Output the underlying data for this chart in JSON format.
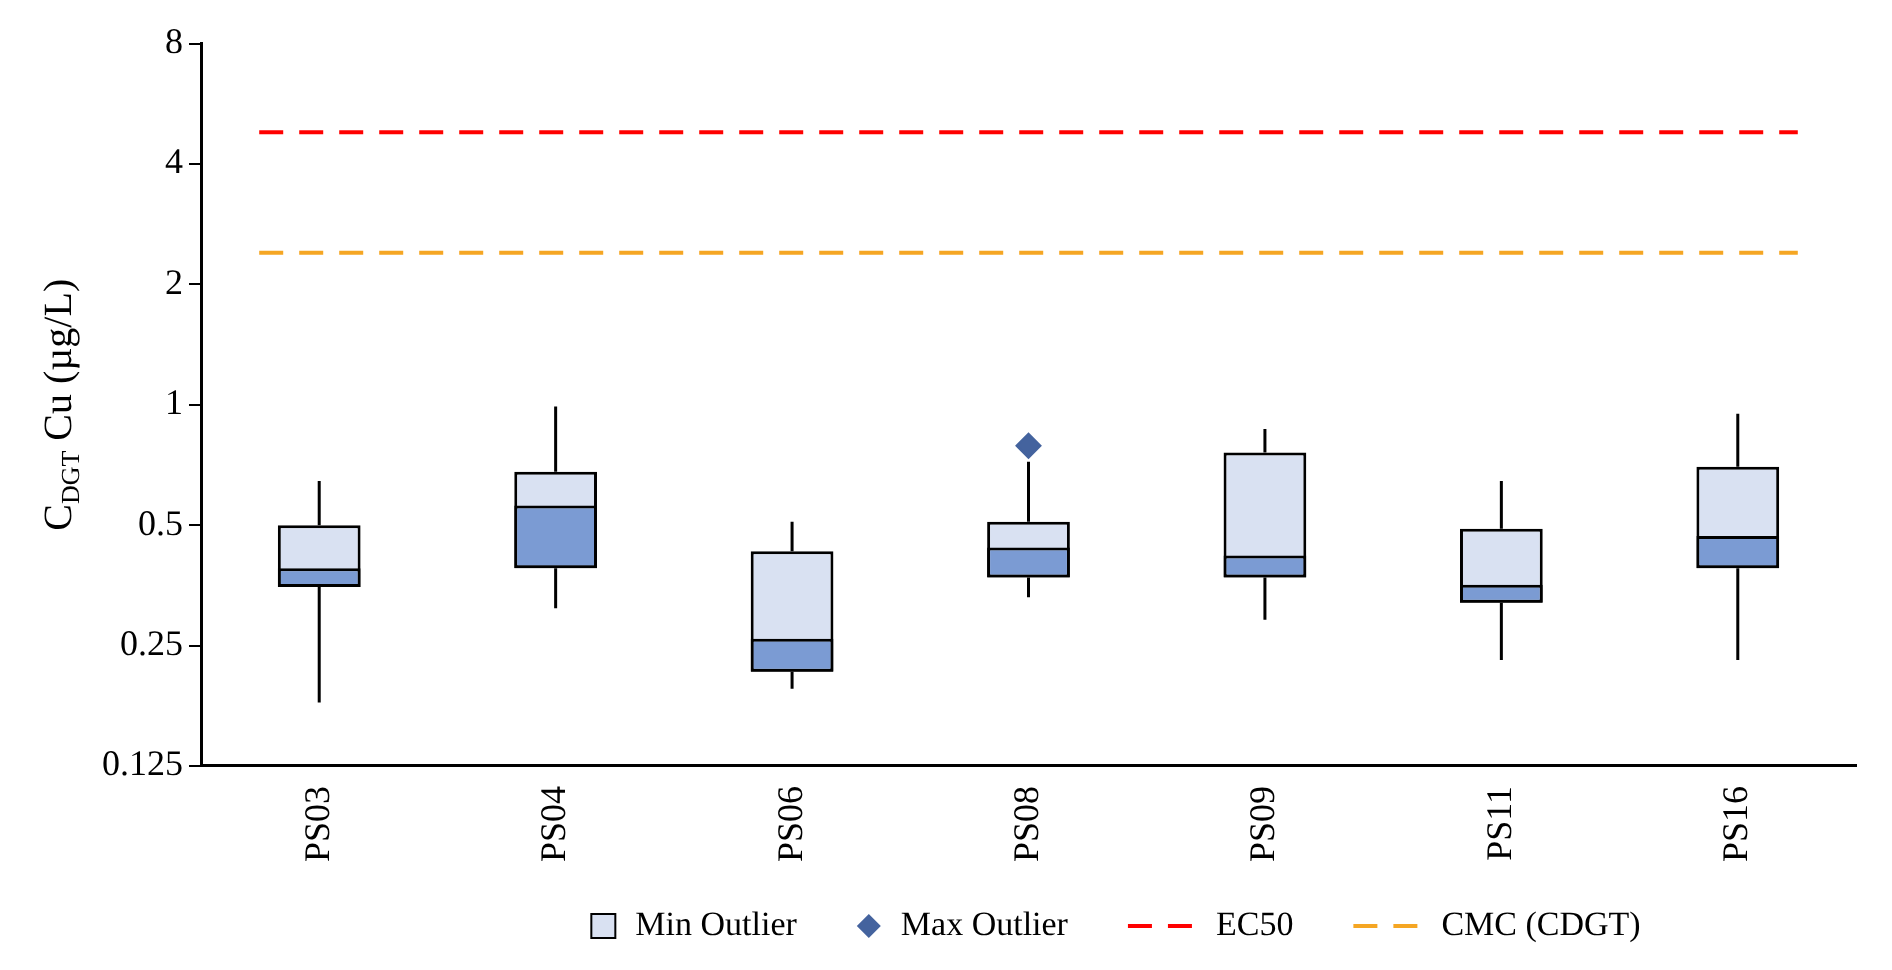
{
  "chart_data": {
    "type": "box",
    "ylabel": "C$_{DGT}$ Cu (µg/L)",
    "categories": [
      "PS03",
      "PS04",
      "PS06",
      "PS08",
      "PS09",
      "PS11",
      "PS16"
    ],
    "log": true,
    "ylim": [
      0.125,
      8
    ],
    "yticks": [
      0.125,
      0.25,
      0.5,
      1,
      2,
      4,
      8
    ],
    "grid": false,
    "legend": "bottom",
    "series": [
      {
        "color": "#7b9bd3",
        "colors": [
          "#d9e1f2",
          "#d9e1f2",
          "#d9e1f2",
          "#d9e1f2",
          "#d9e1f2",
          "#d9e1f2",
          "#d9e1f2"
        ],
        "boxes": [
          {
            "low": 0.18,
            "q1": 0.35,
            "median": 0.39,
            "q3": 0.5,
            "high": 0.645
          },
          {
            "low": 0.31,
            "q1": 0.39,
            "median": 0.56,
            "q3": 0.68,
            "high": 0.99
          },
          {
            "low": 0.195,
            "q1": 0.215,
            "median": 0.26,
            "q3": 0.43,
            "high": 0.51
          },
          {
            "low": 0.33,
            "q1": 0.37,
            "median": 0.44,
            "q3": 0.51,
            "high": 0.72
          },
          {
            "low": 0.29,
            "q1": 0.37,
            "median": 0.42,
            "q3": 0.76,
            "high": 0.87
          },
          {
            "low": 0.23,
            "q1": 0.32,
            "median": 0.355,
            "q3": 0.49,
            "high": 0.645
          },
          {
            "low": 0.23,
            "q1": 0.39,
            "median": 0.47,
            "q3": 0.7,
            "high": 0.95
          }
        ]
      },
      {
        "type": "scatter",
        "name": "Min Outlier",
        "color": "#d9e1f2",
        "marker": "square",
        "x": [
          "PS03"
        ],
        "values": [
          null
        ]
      },
      {
        "type": "scatter",
        "name": "Max Outlier",
        "color": "#44639e",
        "marker": "diamond",
        "x": [
          "PS08"
        ],
        "values": [
          0.79
        ]
      }
    ],
    "ref_lines": [
      {
        "axis": "y",
        "value": 4.8,
        "label": "EC50",
        "color": "#ff0000",
        "line_style": "dashed"
      },
      {
        "axis": "y",
        "value": 2.4,
        "label": "CMC (CDGT)",
        "color": "#f5a623",
        "line_style": "dashed"
      }
    ]
  }
}
